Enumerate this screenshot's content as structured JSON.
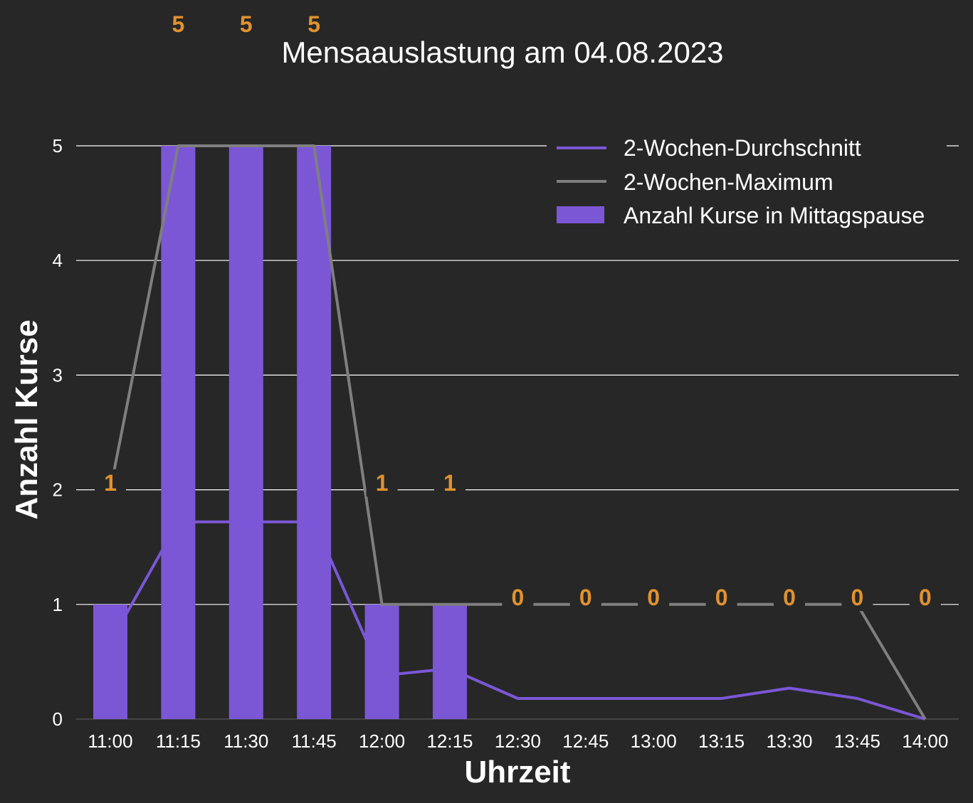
{
  "chart_data": {
    "type": "bar",
    "title": "Mensaauslastung am 04.08.2023",
    "xlabel": "Uhrzeit",
    "ylabel": "Anzahl Kurse",
    "categories": [
      "11:00",
      "11:15",
      "11:30",
      "11:45",
      "12:00",
      "12:15",
      "12:30",
      "12:45",
      "13:00",
      "13:15",
      "13:30",
      "13:45",
      "14:00"
    ],
    "ylim": [
      0,
      5
    ],
    "yticks": [
      "0",
      "1",
      "2",
      "3",
      "4",
      "5"
    ],
    "grid": true,
    "legend_position": "top-right",
    "series": [
      {
        "name": "2-Wochen-Durchschnitt",
        "type": "line",
        "color": "#7b57d6",
        "values": [
          0.67,
          1.72,
          1.72,
          1.72,
          0.38,
          0.44,
          0.18,
          0.18,
          0.18,
          0.18,
          0.27,
          0.18,
          0.0
        ]
      },
      {
        "name": "2-Wochen-Maximum",
        "type": "line",
        "color": "#7f7f7f",
        "values": [
          2,
          5,
          5,
          5,
          1,
          1,
          1,
          1,
          1,
          1,
          1,
          1,
          0
        ]
      },
      {
        "name": "Anzahl Kurse in Mittagspause",
        "type": "bar",
        "color": "#7b57d6",
        "values": [
          1,
          5,
          5,
          5,
          1,
          1,
          0,
          0,
          0,
          0,
          0,
          0,
          0
        ]
      }
    ],
    "data_labels": [
      "1",
      "5",
      "5",
      "5",
      "1",
      "1",
      "0",
      "0",
      "0",
      "0",
      "0",
      "0",
      "0"
    ],
    "colors": {
      "background": "#272727",
      "grid": "#ffffff",
      "label": "#e0922f",
      "text": "#ffffff"
    }
  }
}
